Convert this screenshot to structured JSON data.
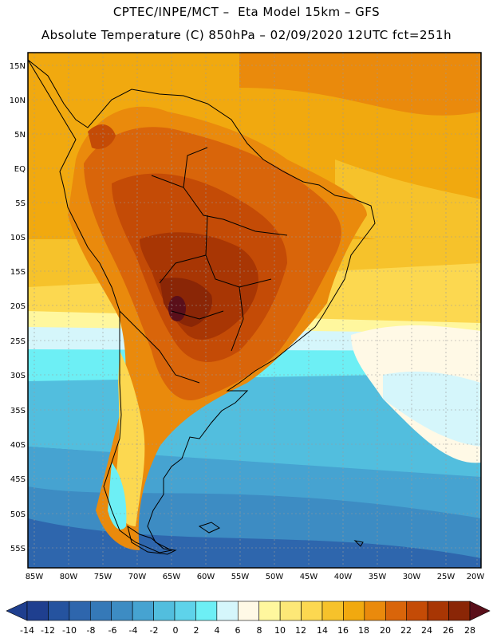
{
  "header": {
    "line1": "CPTEC/INPE/MCT –  Eta Model 15km – GFS",
    "line2": "Absolute Temperature (C) 850hPa – 02/09/2020 12UTC fct=251h"
  },
  "axes": {
    "lat_labels": [
      "15N",
      "10N",
      "5N",
      "EQ",
      "5S",
      "10S",
      "15S",
      "20S",
      "25S",
      "30S",
      "35S",
      "40S",
      "45S",
      "50S",
      "55S"
    ],
    "lon_labels": [
      "85W",
      "80W",
      "75W",
      "70W",
      "65W",
      "60W",
      "55W",
      "50W",
      "45W",
      "40W",
      "35W",
      "30W",
      "25W",
      "20W"
    ]
  },
  "colorbar": {
    "labels": [
      "-14",
      "-12",
      "-10",
      "-8",
      "-6",
      "-4",
      "-2",
      "0",
      "2",
      "4",
      "6",
      "8",
      "10",
      "12",
      "14",
      "16",
      "18",
      "20",
      "22",
      "24",
      "26",
      "28"
    ],
    "colors": [
      "#1f3f8f",
      "#25539f",
      "#2e66ad",
      "#3579b8",
      "#3d8cc3",
      "#46a3d1",
      "#52bede",
      "#5ed3ea",
      "#6deff5",
      "#d5f6fb",
      "#fff9e6",
      "#fff79e",
      "#fde877",
      "#fcd850",
      "#f6c22b",
      "#f1a90f",
      "#ea8a0c",
      "#d9650a",
      "#c44b06",
      "#a83604",
      "#8a2606",
      "#5a0f1a"
    ]
  }
}
